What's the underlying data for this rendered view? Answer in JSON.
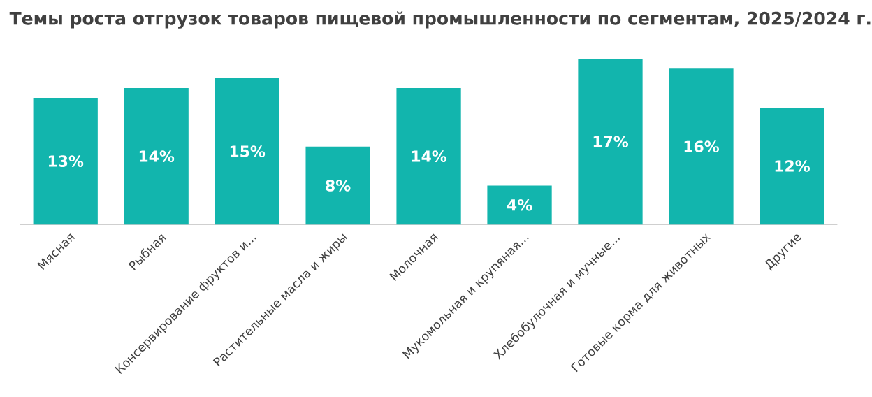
{
  "chart_data": {
    "type": "bar",
    "title": "Темы роста отгрузок товаров пищевой промышленности по сегментам, 2025/2024 г.",
    "categories": [
      "Мясная",
      "Рыбная",
      "Консервирование фруктов и...",
      "Растительные масла и жиры",
      "Молочная",
      "Мукомольная и крупяная...",
      "Хлебобулочная и мучные...",
      "Готовые корма для животных",
      "Другие"
    ],
    "values": [
      13,
      14,
      15,
      8,
      14,
      4,
      17,
      16,
      12
    ],
    "value_labels": [
      "13%",
      "14%",
      "15%",
      "8%",
      "14%",
      "4%",
      "17%",
      "16%",
      "12%"
    ],
    "color": "#12b5ad"
  }
}
